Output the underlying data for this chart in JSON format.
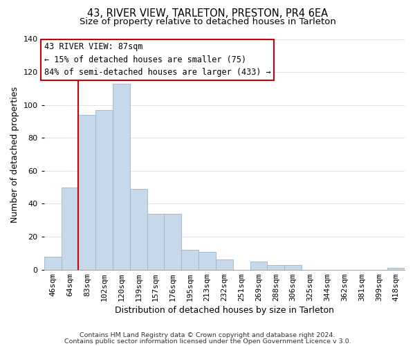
{
  "title": "43, RIVER VIEW, TARLETON, PRESTON, PR4 6EA",
  "subtitle": "Size of property relative to detached houses in Tarleton",
  "xlabel": "Distribution of detached houses by size in Tarleton",
  "ylabel": "Number of detached properties",
  "bar_labels": [
    "46sqm",
    "64sqm",
    "83sqm",
    "102sqm",
    "120sqm",
    "139sqm",
    "157sqm",
    "176sqm",
    "195sqm",
    "213sqm",
    "232sqm",
    "251sqm",
    "269sqm",
    "288sqm",
    "306sqm",
    "325sqm",
    "344sqm",
    "362sqm",
    "381sqm",
    "399sqm",
    "418sqm"
  ],
  "bar_heights": [
    8,
    50,
    94,
    97,
    113,
    49,
    34,
    34,
    12,
    11,
    6,
    0,
    5,
    3,
    3,
    0,
    0,
    0,
    0,
    0,
    1
  ],
  "bar_color": "#c8d8eb",
  "bar_edge_color": "#9ab5cc",
  "vline_index": 2,
  "vline_color": "#cc0000",
  "ylim": [
    0,
    140
  ],
  "yticks": [
    0,
    20,
    40,
    60,
    80,
    100,
    120,
    140
  ],
  "annotation_title": "43 RIVER VIEW: 87sqm",
  "annotation_line1": "← 15% of detached houses are smaller (75)",
  "annotation_line2": "84% of semi-detached houses are larger (433) →",
  "annotation_box_color": "#ffffff",
  "annotation_box_edge": "#cc0000",
  "footer1": "Contains HM Land Registry data © Crown copyright and database right 2024.",
  "footer2": "Contains public sector information licensed under the Open Government Licence v 3.0.",
  "title_fontsize": 10.5,
  "subtitle_fontsize": 9.5,
  "axis_label_fontsize": 9,
  "tick_fontsize": 8,
  "annotation_fontsize": 8.5,
  "footer_fontsize": 6.8,
  "grid_color": "#d8e4ed",
  "background_color": "#ffffff"
}
